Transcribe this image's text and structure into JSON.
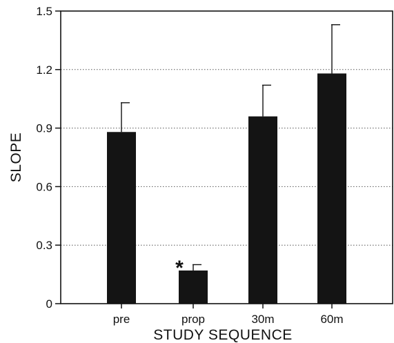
{
  "chart_data": {
    "type": "bar",
    "title": "",
    "xlabel": "STUDY SEQUENCE",
    "ylabel": "SLOPE",
    "categories": [
      "pre",
      "prop",
      "30m",
      "60m"
    ],
    "series": [
      {
        "values": [
          0.88,
          0.17,
          0.96,
          1.18
        ],
        "error_upper": [
          0.15,
          0.03,
          0.16,
          0.25
        ]
      }
    ],
    "ylim": [
      0,
      1.5
    ],
    "yticks": [
      "0",
      "0.3",
      "0.6",
      "0.9",
      "1.2",
      "1.5"
    ],
    "grid": "horizontal dotted",
    "annotations": [
      {
        "category": "prop",
        "text": "*"
      }
    ],
    "colors": {
      "bar": "#141414",
      "axis": "#111111",
      "grid": "#555555"
    }
  }
}
